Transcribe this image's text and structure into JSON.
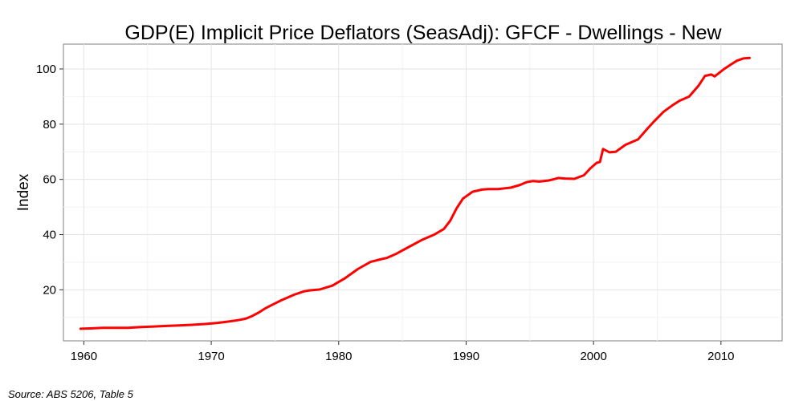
{
  "chart_data": {
    "type": "line",
    "title": "GDP(E) Implicit Price Deflators (SeasAdj): GFCF - Dwellings - New",
    "xlabel": "",
    "ylabel": "Index",
    "xlim": [
      1958.4,
      2014.8
    ],
    "ylim": [
      1.5,
      109
    ],
    "x_ticks": [
      1960,
      1970,
      1980,
      1990,
      2000,
      2010
    ],
    "x_tick_labels": [
      "1960",
      "1970",
      "1980",
      "1990",
      "2000",
      "2010"
    ],
    "y_ticks": [
      20,
      40,
      60,
      80,
      100
    ],
    "y_tick_labels": [
      "20",
      "40",
      "60",
      "80",
      "100"
    ],
    "grid": true,
    "series": [
      {
        "name": "GFCF - Dwellings - New",
        "color": "#ff0000",
        "x": [
          1959.75,
          1960.5,
          1961.5,
          1962.5,
          1963.5,
          1964.5,
          1965.5,
          1966.5,
          1967.5,
          1968.5,
          1969.5,
          1970.5,
          1971.5,
          1972.25,
          1972.75,
          1973.25,
          1973.75,
          1974.25,
          1974.75,
          1975.5,
          1976.5,
          1977.25,
          1977.75,
          1978.5,
          1979.5,
          1980.5,
          1981.5,
          1982.5,
          1983.25,
          1983.75,
          1984.5,
          1985.5,
          1986.5,
          1987.5,
          1988.25,
          1988.75,
          1989.25,
          1989.75,
          1990.5,
          1991.25,
          1991.75,
          1992.5,
          1993.5,
          1994.25,
          1994.75,
          1995.25,
          1995.75,
          1996.5,
          1997.25,
          1997.75,
          1998.5,
          1999.25,
          1999.75,
          2000.25,
          2000.5,
          2000.75,
          2001.25,
          2001.75,
          2002.5,
          2003.5,
          2004.25,
          2004.75,
          2005.5,
          2006.25,
          2006.75,
          2007.5,
          2008.25,
          2008.75,
          2009.25,
          2009.5,
          2010.25,
          2010.75,
          2011.25,
          2011.75,
          2012.25
        ],
        "values": [
          5.9,
          6.0,
          6.2,
          6.2,
          6.2,
          6.5,
          6.7,
          6.9,
          7.1,
          7.3,
          7.6,
          8.0,
          8.6,
          9.1,
          9.6,
          10.6,
          11.8,
          13.3,
          14.5,
          16.2,
          18.2,
          19.4,
          19.8,
          20.1,
          21.5,
          24.2,
          27.5,
          30.1,
          31.0,
          31.5,
          33.0,
          35.5,
          38.0,
          40.0,
          42.0,
          45.0,
          49.5,
          53.0,
          55.5,
          56.3,
          56.5,
          56.5,
          57.0,
          58.0,
          59.0,
          59.4,
          59.2,
          59.6,
          60.5,
          60.3,
          60.2,
          61.5,
          64.0,
          66.0,
          66.3,
          71.0,
          69.8,
          70.0,
          72.5,
          74.5,
          78.5,
          81.0,
          84.5,
          87.0,
          88.5,
          90.0,
          94.0,
          97.5,
          98.0,
          97.3,
          100.0,
          101.5,
          103.0,
          103.8,
          104.0
        ]
      }
    ],
    "source_note": "Source: ABS 5206, Table 5"
  }
}
